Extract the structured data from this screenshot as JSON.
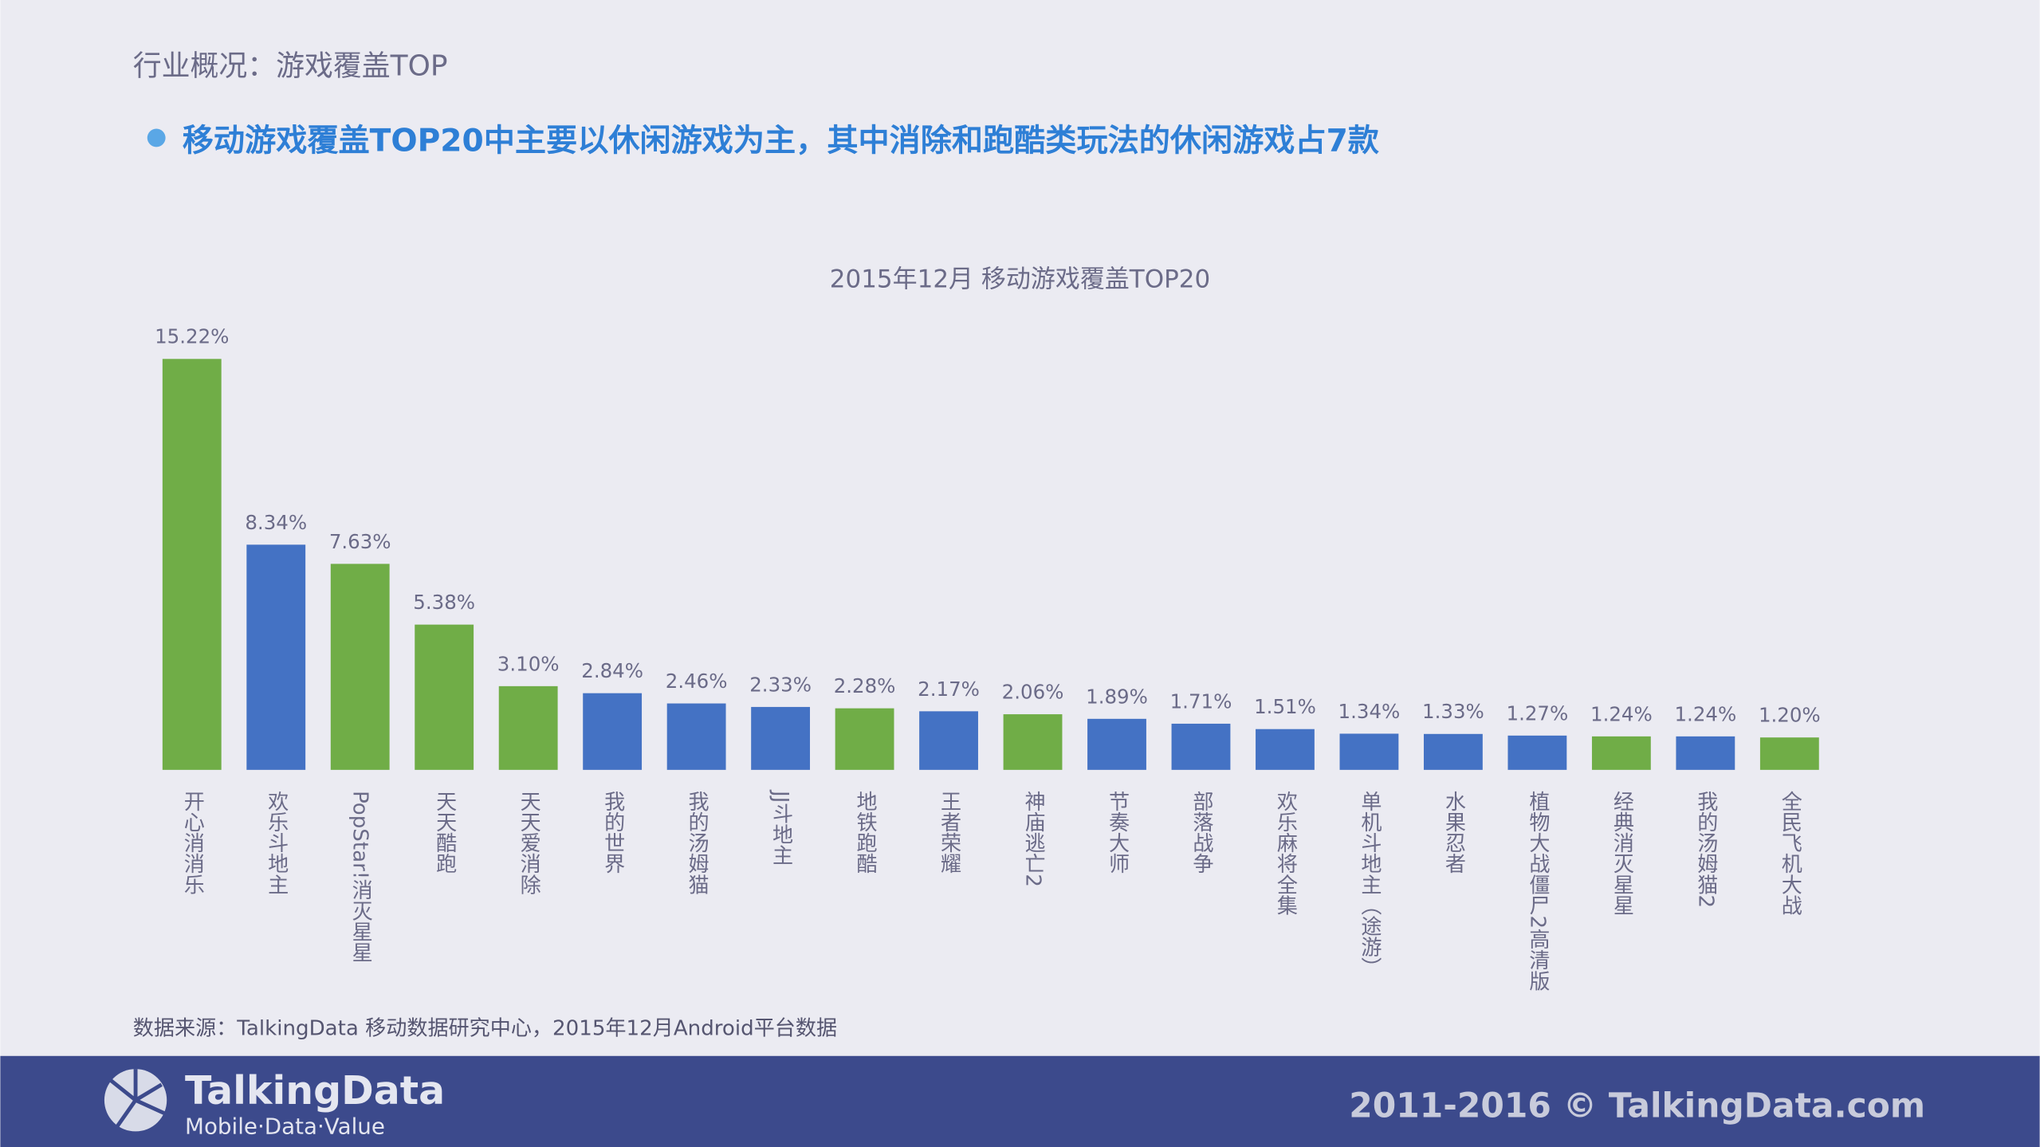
{
  "header": {
    "title": "行业概况：游戏覆盖TOP"
  },
  "headline": "移动游戏覆盖TOP20中主要以休闲游戏为主，其中消除和跑酷类玩法的休闲游戏占7款",
  "chart_data": {
    "type": "bar",
    "title": "2015年12月 移动游戏覆盖TOP20",
    "categories": [
      "开心消消乐",
      "欢乐斗地主",
      "PopStar!消灭星星",
      "天天酷跑",
      "天天爱消除",
      "我的世界",
      "我的汤姆猫",
      "JJ斗地主",
      "地铁跑酷",
      "王者荣耀",
      "神庙逃亡2",
      "节奏大师",
      "部落战争",
      "欢乐麻将全集",
      "单机斗地主（途游）",
      "水果忍者",
      "植物大战僵尸2高清版",
      "经典消灭星星",
      "我的汤姆猫2",
      "全民飞机大战"
    ],
    "values": [
      15.22,
      8.34,
      7.63,
      5.38,
      3.1,
      2.84,
      2.46,
      2.33,
      2.28,
      2.17,
      2.06,
      1.89,
      1.71,
      1.51,
      1.34,
      1.33,
      1.27,
      1.24,
      1.24,
      1.2
    ],
    "value_labels": [
      "15.22%",
      "8.34%",
      "7.63%",
      "5.38%",
      "3.10%",
      "2.84%",
      "2.46%",
      "2.33%",
      "2.28%",
      "2.17%",
      "2.06%",
      "1.89%",
      "1.71%",
      "1.51%",
      "1.34%",
      "1.33%",
      "1.27%",
      "1.24%",
      "1.24%",
      "1.20%"
    ],
    "colors": [
      "#70ad47",
      "#4472c4",
      "#70ad47",
      "#70ad47",
      "#70ad47",
      "#4472c4",
      "#4472c4",
      "#4472c4",
      "#70ad47",
      "#4472c4",
      "#70ad47",
      "#4472c4",
      "#4472c4",
      "#4472c4",
      "#4472c4",
      "#4472c4",
      "#4472c4",
      "#70ad47",
      "#4472c4",
      "#70ad47"
    ]
  },
  "source": "数据来源：TalkingData 移动数据研究中心，2015年12月Android平台数据",
  "footer": {
    "logo": "TalkingData",
    "tagline": "Mobile·Data·Value",
    "copyright": "2011-2016 © TalkingData.com"
  }
}
